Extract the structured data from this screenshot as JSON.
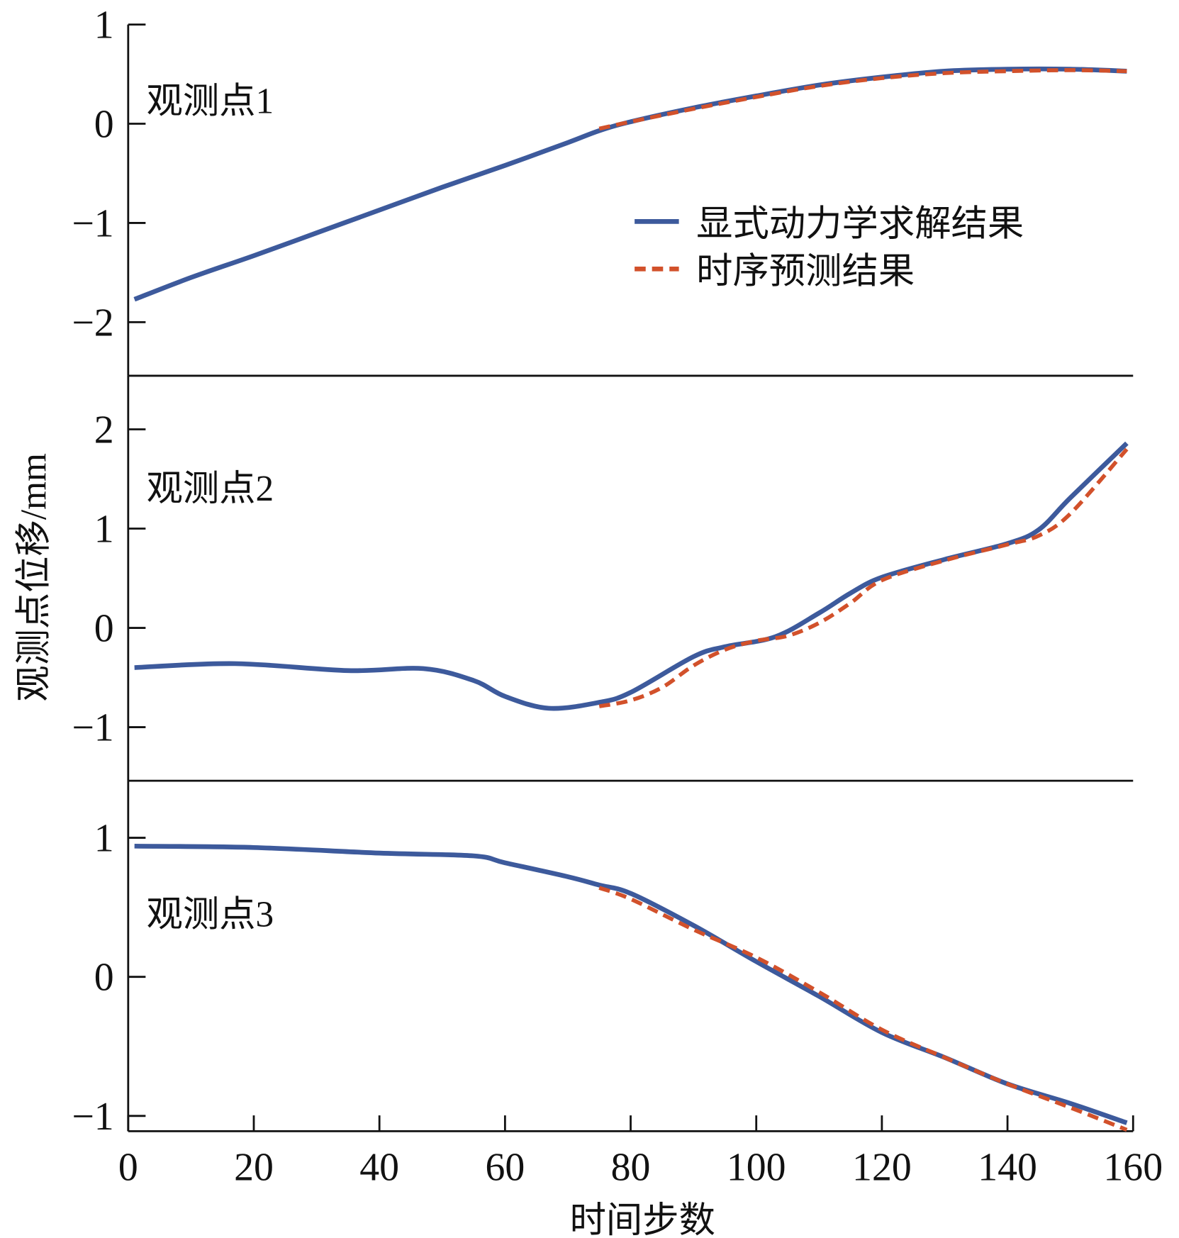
{
  "chart_data": {
    "type": "line",
    "xlabel": "时间步数",
    "ylabel": "观测点位移/mm",
    "xlim": [
      0,
      160
    ],
    "x_ticks": [
      0,
      20,
      40,
      60,
      80,
      100,
      120,
      140,
      160
    ],
    "legend": {
      "placement": "top-right of first panel",
      "entries": [
        {
          "name": "显式动力学求解结果",
          "color": "#3d5a9c",
          "style": "solid"
        },
        {
          "name": "时序预测结果",
          "color": "#d2512b",
          "style": "dashed"
        }
      ]
    },
    "panels": [
      {
        "label": "观测点1",
        "ylim": [
          -2.54,
          1.0
        ],
        "y_ticks": [
          1,
          0,
          -1,
          -2
        ],
        "y_tick_labels": [
          "1",
          "0",
          "−1",
          "−2"
        ],
        "series": [
          {
            "name": "显式动力学求解结果",
            "x": [
              1,
              10,
              20,
              30,
              40,
              50,
              60,
              70,
              75,
              80,
              90,
              100,
              110,
              120,
              130,
              140,
              150,
              159
            ],
            "y": [
              -1.77,
              -1.55,
              -1.33,
              -1.1,
              -0.87,
              -0.64,
              -0.42,
              -0.19,
              -0.07,
              0.02,
              0.16,
              0.28,
              0.39,
              0.47,
              0.53,
              0.55,
              0.55,
              0.53
            ]
          },
          {
            "name": "时序预测结果",
            "x": [
              75,
              80,
              90,
              100,
              110,
              120,
              130,
              140,
              150,
              159
            ],
            "y": [
              -0.05,
              0.02,
              0.15,
              0.27,
              0.38,
              0.46,
              0.51,
              0.53,
              0.54,
              0.53
            ]
          }
        ]
      },
      {
        "label": "观测点2",
        "ylim": [
          -1.54,
          2.54
        ],
        "y_ticks": [
          2,
          1,
          0,
          -1
        ],
        "y_tick_labels": [
          "2",
          "1",
          "0",
          "−1"
        ],
        "series": [
          {
            "name": "显式动力学求解结果",
            "x": [
              1,
              17,
              35,
              47,
              55,
              60,
              67,
              75,
              80,
              90,
              95,
              103,
              110,
              115,
              120,
              130,
              140,
              145,
              150,
              159
            ],
            "y": [
              -0.4,
              -0.36,
              -0.43,
              -0.41,
              -0.53,
              -0.69,
              -0.81,
              -0.75,
              -0.65,
              -0.29,
              -0.19,
              -0.09,
              0.15,
              0.35,
              0.51,
              0.69,
              0.85,
              0.99,
              1.31,
              1.86
            ]
          },
          {
            "name": "时序预测结果",
            "x": [
              75,
              80,
              85,
              90,
              95,
              100,
              105,
              110,
              115,
              120,
              130,
              140,
              145,
              150,
              159
            ],
            "y": [
              -0.79,
              -0.73,
              -0.6,
              -0.38,
              -0.22,
              -0.13,
              -0.08,
              0.05,
              0.25,
              0.48,
              0.68,
              0.84,
              0.93,
              1.15,
              1.8
            ]
          }
        ]
      },
      {
        "label": "观测点3",
        "ylim": [
          -1.11,
          1.41
        ],
        "y_ticks": [
          1,
          0,
          -1
        ],
        "y_tick_labels": [
          "1",
          "0",
          "−1"
        ],
        "series": [
          {
            "name": "显式动力学求解结果",
            "x": [
              1,
              20,
              40,
              55,
              60,
              70,
              75,
              80,
              90,
              100,
              110,
              120,
              130,
              140,
              150,
              159
            ],
            "y": [
              0.94,
              0.93,
              0.89,
              0.87,
              0.82,
              0.72,
              0.66,
              0.6,
              0.37,
              0.11,
              -0.14,
              -0.4,
              -0.58,
              -0.77,
              -0.91,
              -1.05
            ]
          },
          {
            "name": "时序预测结果",
            "x": [
              75,
              80,
              90,
              100,
              110,
              120,
              130,
              140,
              150,
              159
            ],
            "y": [
              0.64,
              0.56,
              0.34,
              0.14,
              -0.11,
              -0.38,
              -0.58,
              -0.77,
              -0.94,
              -1.1
            ]
          }
        ]
      }
    ]
  }
}
